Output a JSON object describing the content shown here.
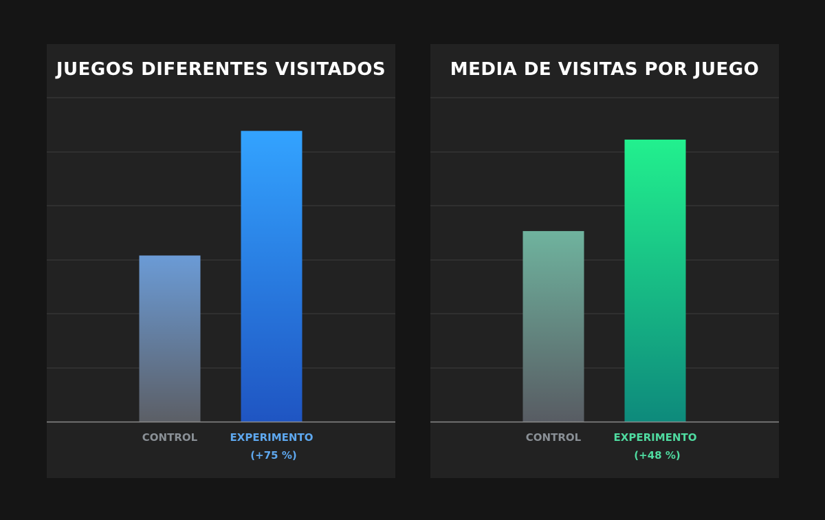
{
  "chart_data": [
    {
      "type": "bar",
      "title": "JUEGOS DIFERENTES VISITADOS",
      "categories": [
        "CONTROL",
        "EXPERIMENTO"
      ],
      "sublabels": [
        "",
        "(+75 %)"
      ],
      "values": [
        100,
        175
      ],
      "ylim": [
        0,
        195
      ],
      "grid": true,
      "colors": {
        "control_label": "#8a9096",
        "experiment_label": "#5ea8ef",
        "control_top": "#6b9bd6",
        "control_bottom": "#5c5f66",
        "experiment_top": "#33a3ff",
        "experiment_bottom": "#1f55c2"
      }
    },
    {
      "type": "bar",
      "title": "MEDIA DE VISITAS POR JUEGO",
      "categories": [
        "CONTROL",
        "EXPERIMENTO"
      ],
      "sublabels": [
        "",
        "(+48 %)"
      ],
      "values": [
        100,
        148
      ],
      "ylim": [
        0,
        170
      ],
      "grid": true,
      "colors": {
        "control_label": "#8a9096",
        "experiment_label": "#4fdba0",
        "control_top": "#6fb39e",
        "control_bottom": "#585c63",
        "experiment_top": "#22f08e",
        "experiment_bottom": "#0e8a7c"
      }
    }
  ]
}
